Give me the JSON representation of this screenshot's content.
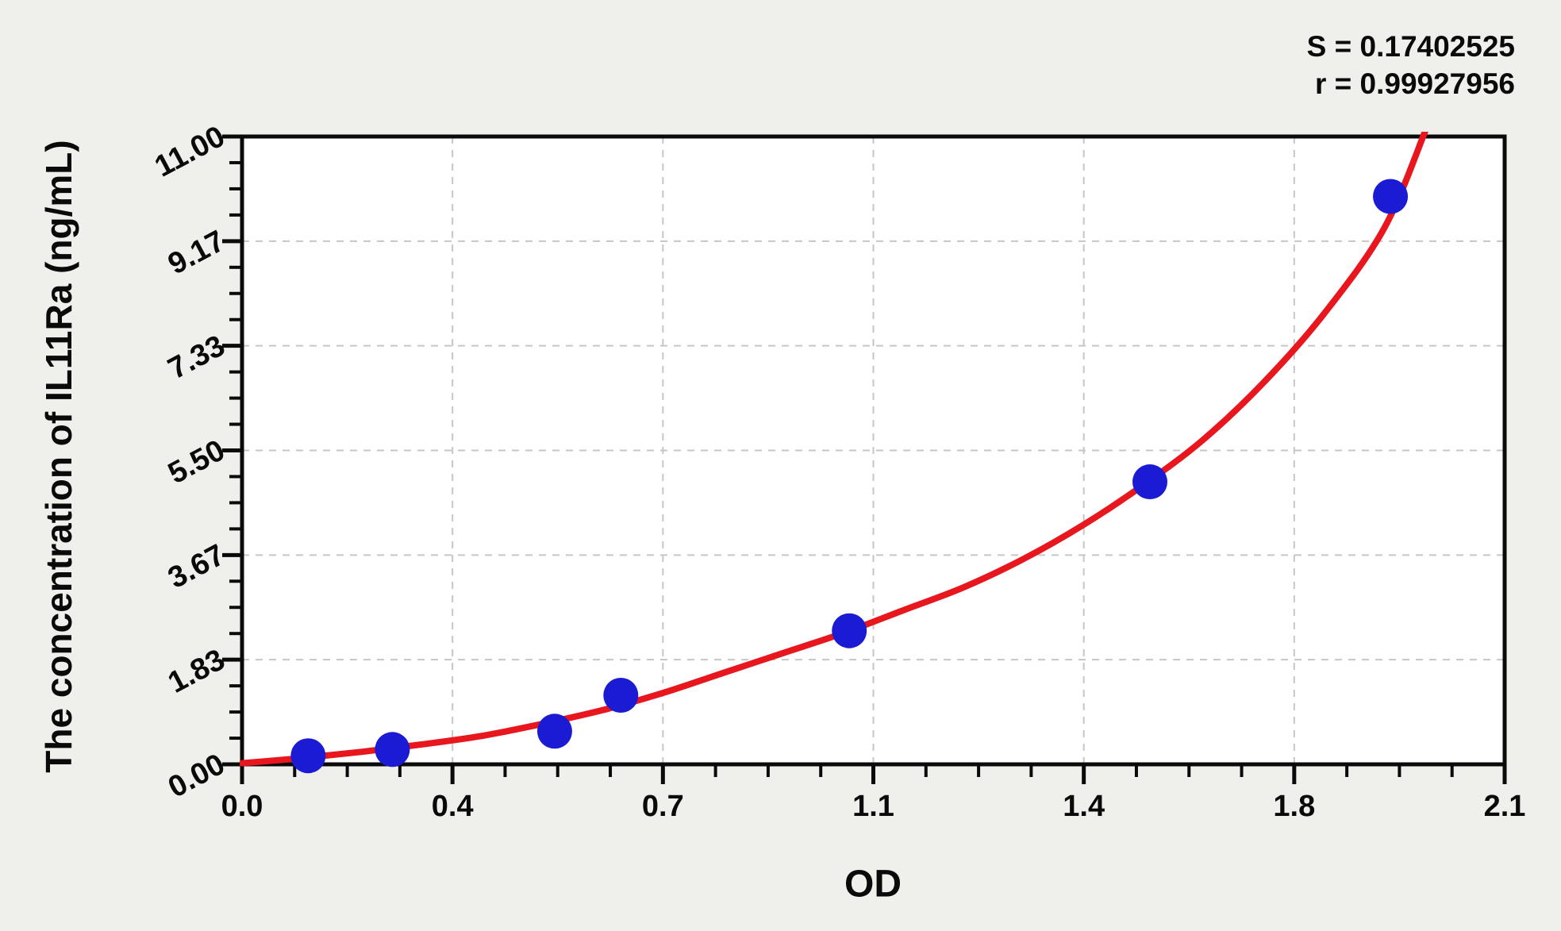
{
  "layout_colors": {
    "page_background": "#efefec",
    "plot_background": "#ffffff",
    "axis_color": "#0a0a0a",
    "grid_color": "#c6c6c6",
    "point_color": "#1b1bd3",
    "curve_color": "#e8161d",
    "text_color": "#0a0a0a"
  },
  "chart_data": {
    "type": "scatter",
    "title": "",
    "xlabel": "OD",
    "ylabel": "The concentration of IL11Ra (ng/mL)",
    "xlim": [
      0,
      2.1
    ],
    "ylim": [
      0,
      11
    ],
    "x_major_tick_labels": [
      "0.0",
      "0.4",
      "0.7",
      "1.1",
      "1.4",
      "1.8",
      "2.1"
    ],
    "y_major_tick_labels": [
      "0.00",
      "1.83",
      "3.67",
      "5.50",
      "7.33",
      "9.17",
      "11.00"
    ],
    "minor_ticks_between_majors": 3,
    "grid": {
      "show": true,
      "style": "dashed",
      "at": "major-ticks"
    },
    "annotations": [
      "S = 0.17402525",
      "r = 0.99927956"
    ],
    "legend": {
      "show": false
    },
    "series": [
      {
        "name": "standard-points",
        "type": "scatter",
        "marker": "circle",
        "color": "#1b1bd3",
        "points": [
          [
            0.11,
            0.15
          ],
          [
            0.25,
            0.26
          ],
          [
            0.52,
            0.58
          ],
          [
            0.63,
            1.21
          ],
          [
            1.01,
            2.34
          ],
          [
            1.51,
            4.95
          ],
          [
            1.91,
            9.95
          ]
        ]
      },
      {
        "name": "fitted-curve",
        "type": "line",
        "color": "#e8161d",
        "points": [
          [
            0.0,
            0.02
          ],
          [
            0.1,
            0.11
          ],
          [
            0.2,
            0.22
          ],
          [
            0.3,
            0.35
          ],
          [
            0.4,
            0.5
          ],
          [
            0.5,
            0.71
          ],
          [
            0.6,
            0.95
          ],
          [
            0.7,
            1.25
          ],
          [
            0.8,
            1.6
          ],
          [
            0.9,
            1.95
          ],
          [
            1.0,
            2.3
          ],
          [
            1.1,
            2.7
          ],
          [
            1.2,
            3.1
          ],
          [
            1.3,
            3.6
          ],
          [
            1.4,
            4.2
          ],
          [
            1.5,
            4.9
          ],
          [
            1.6,
            5.7
          ],
          [
            1.7,
            6.7
          ],
          [
            1.8,
            7.9
          ],
          [
            1.9,
            9.4
          ],
          [
            1.97,
            11.15
          ]
        ]
      }
    ]
  }
}
